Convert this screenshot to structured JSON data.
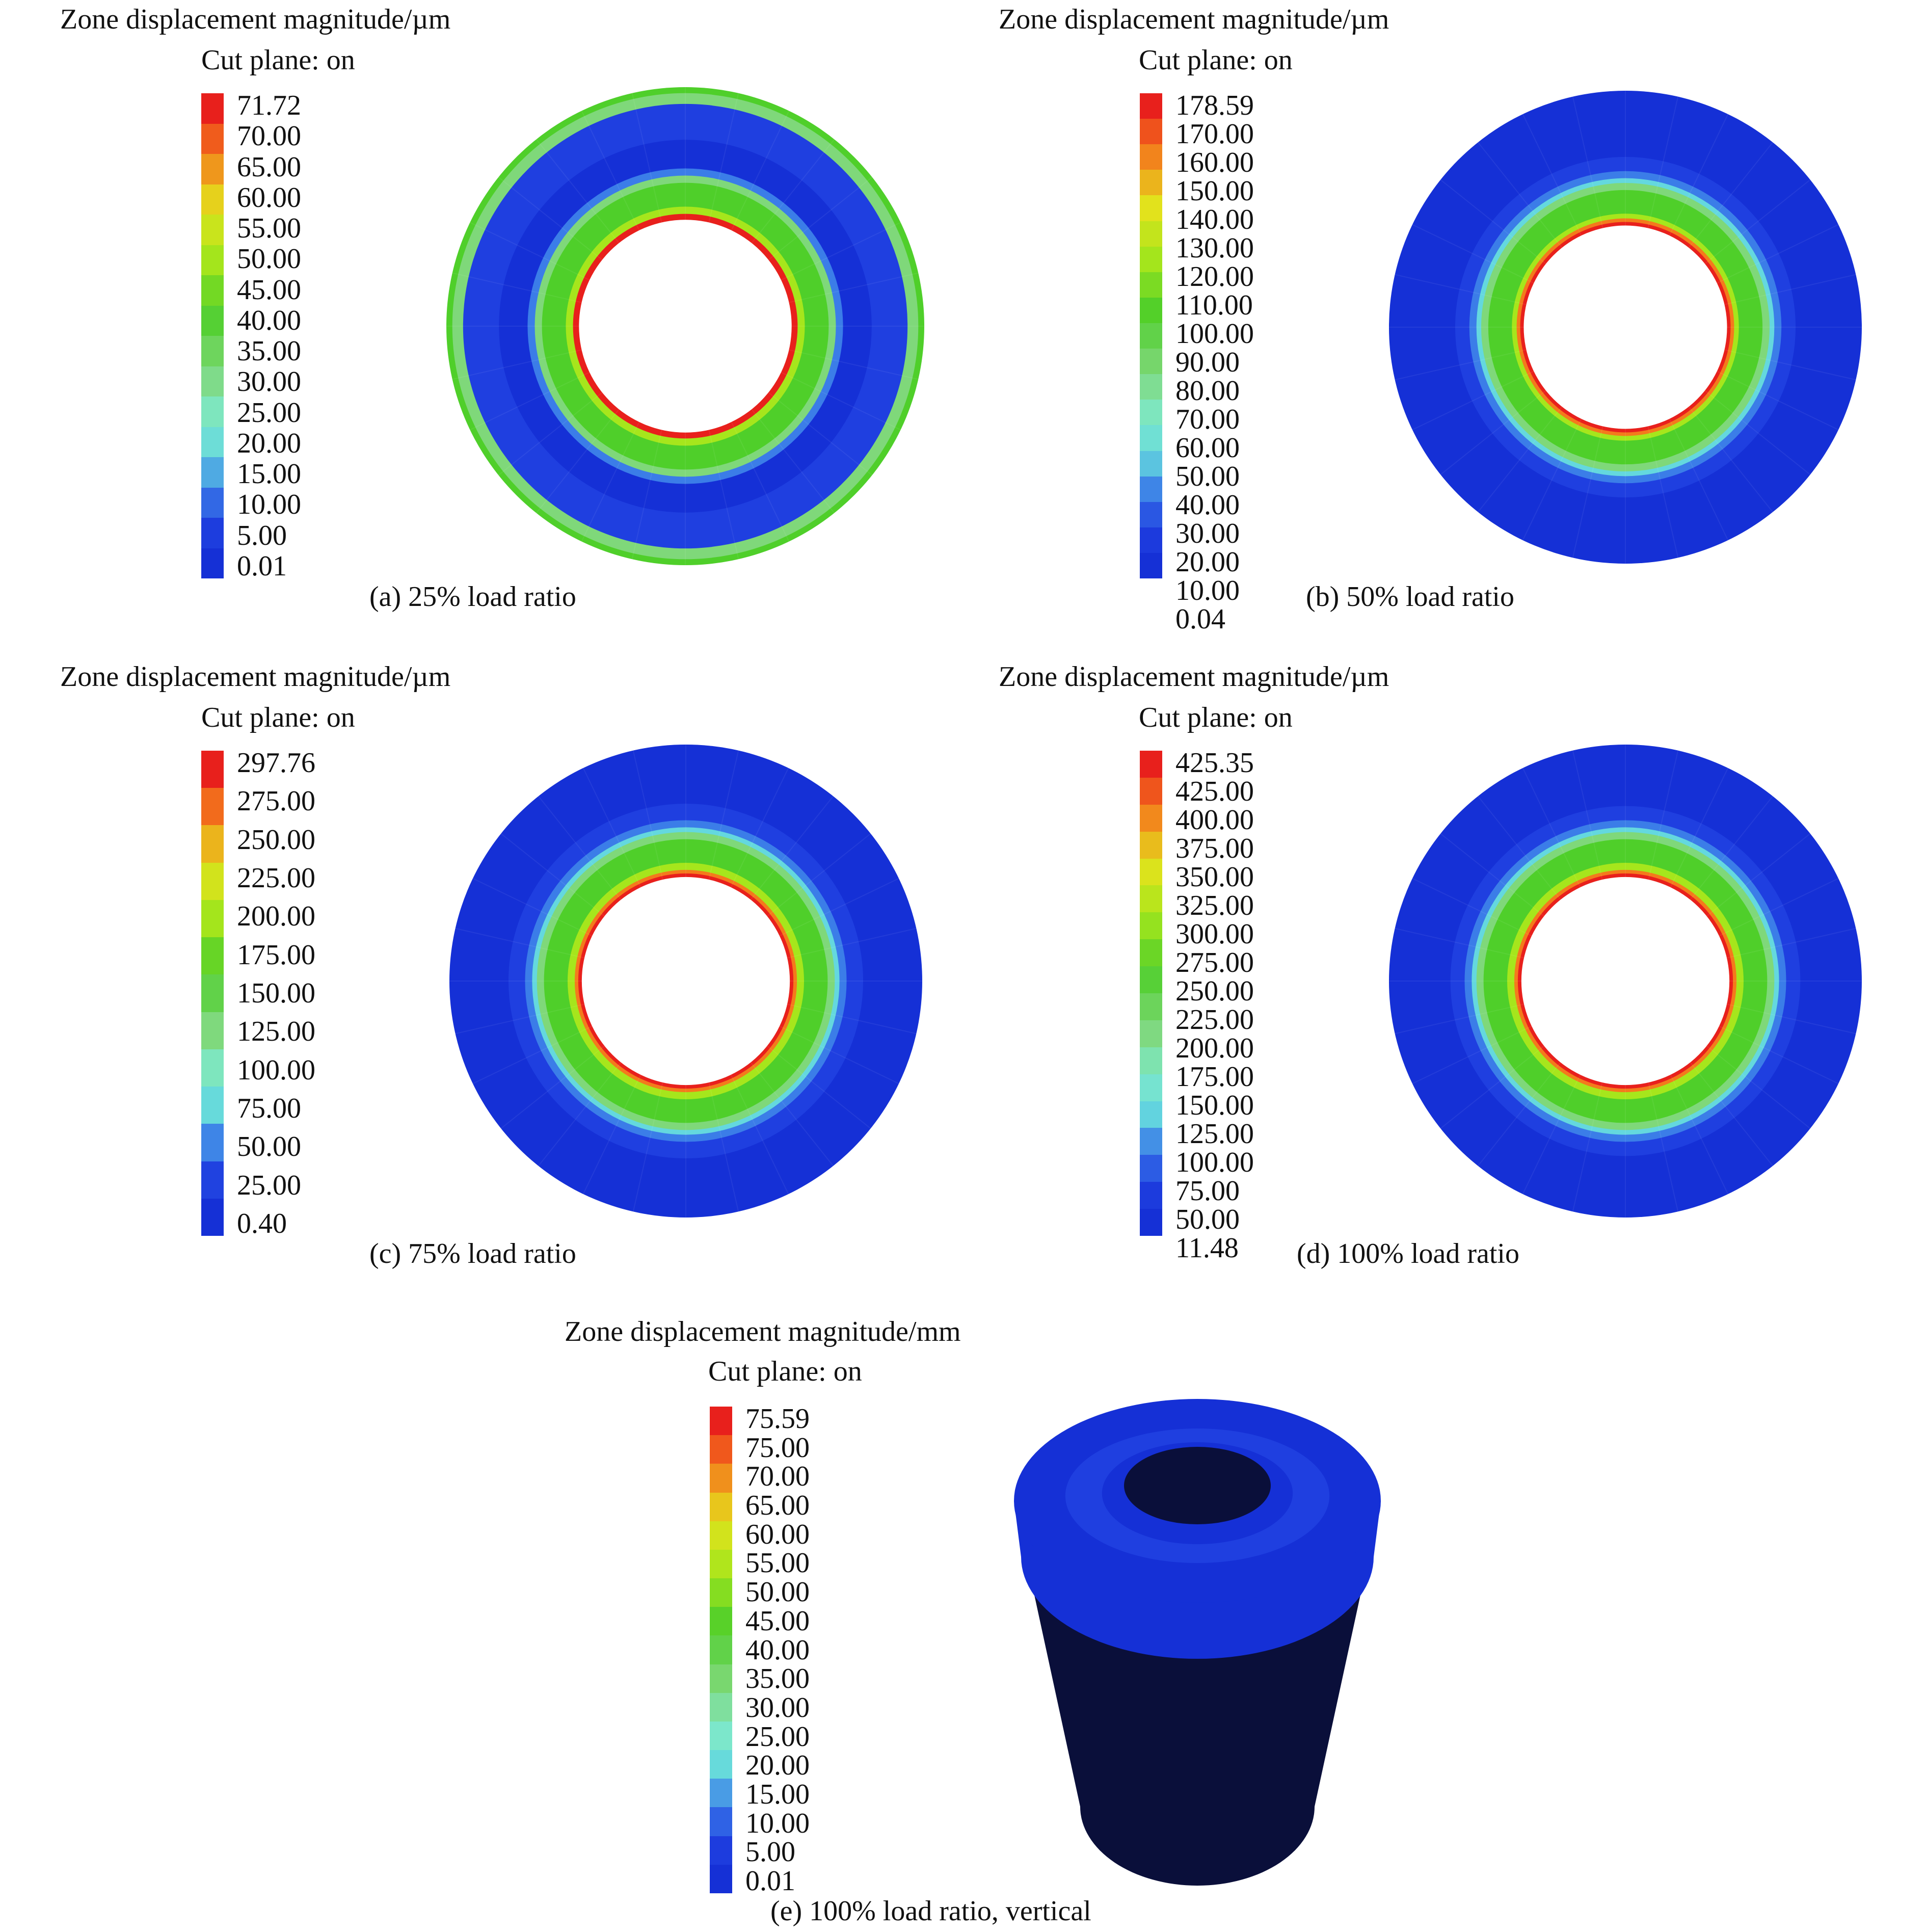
{
  "panels": [
    {
      "title": "Zone displacement magnitude/µm",
      "subtitle": "Cut plane: on",
      "caption": "(a) 25% load ratio",
      "legend": [
        "71.72",
        "70.00",
        "65.00",
        "60.00",
        "55.00",
        "50.00",
        "45.00",
        "40.00",
        "35.00",
        "30.00",
        "25.00",
        "20.00",
        "15.00",
        "10.00",
        "5.00",
        "0.01"
      ]
    },
    {
      "title": "Zone displacement magnitude/µm",
      "subtitle": "Cut plane: on",
      "caption": "(b) 50% load ratio",
      "legend": [
        "178.59",
        "170.00",
        "160.00",
        "150.00",
        "140.00",
        "130.00",
        "120.00",
        "110.00",
        "100.00",
        "90.00",
        "80.00",
        "70.00",
        "60.00",
        "50.00",
        "40.00",
        "30.00",
        "20.00",
        "10.00",
        "0.04"
      ]
    },
    {
      "title": "Zone displacement magnitude/µm",
      "subtitle": "Cut plane: on",
      "caption": "(c) 75% load ratio",
      "legend": [
        "297.76",
        "275.00",
        "250.00",
        "225.00",
        "200.00",
        "175.00",
        "150.00",
        "125.00",
        "100.00",
        "75.00",
        "50.00",
        "25.00",
        "0.40"
      ]
    },
    {
      "title": "Zone displacement magnitude/µm",
      "subtitle": "Cut plane: on",
      "caption": "(d) 100% load ratio",
      "legend": [
        "425.35",
        "425.00",
        "400.00",
        "375.00",
        "350.00",
        "325.00",
        "300.00",
        "275.00",
        "250.00",
        "225.00",
        "200.00",
        "175.00",
        "150.00",
        "125.00",
        "100.00",
        "75.00",
        "50.00",
        "11.48"
      ]
    },
    {
      "title": "Zone displacement magnitude/mm",
      "subtitle": "Cut plane: on",
      "caption": "(e) 100% load ratio, vertical",
      "legend": [
        "75.59",
        "75.00",
        "70.00",
        "65.00",
        "60.00",
        "55.00",
        "50.00",
        "45.00",
        "40.00",
        "35.00",
        "30.00",
        "25.00",
        "20.00",
        "15.00",
        "10.00",
        "5.00",
        "0.01"
      ]
    }
  ],
  "colors": {
    "red": "#e8201c",
    "orange": "#f47a1c",
    "yellow": "#e3e21c",
    "lime": "#a6e61c",
    "green": "#4fcf2a",
    "lightgreen": "#7fd87a",
    "mint": "#7ee8c9",
    "cyan": "#64d8de",
    "midblue": "#3b7de8",
    "blue": "#1f3fe0",
    "deepblue": "#1530d6",
    "dark": "#0a0f3a"
  }
}
